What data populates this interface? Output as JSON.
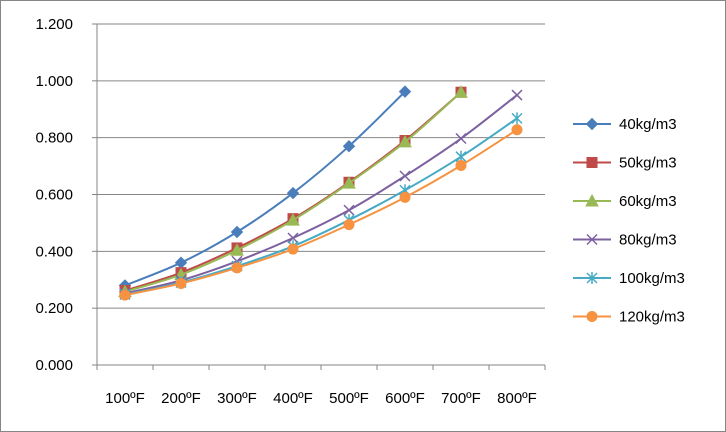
{
  "chart_data": {
    "type": "line",
    "title": "",
    "xlabel": "",
    "ylabel": "",
    "categories": [
      "100ºF",
      "200ºF",
      "300ºF",
      "400ºF",
      "500ºF",
      "600ºF",
      "700ºF",
      "800ºF"
    ],
    "ylim": [
      0,
      1.2
    ],
    "y_ticks": [
      "0.000",
      "0.200",
      "0.400",
      "0.600",
      "0.800",
      "1.000",
      "1.200"
    ],
    "grid": "horizontal",
    "legend_position": "right",
    "series": [
      {
        "name": "40kg/m3",
        "color": "#4A7EBB",
        "marker": "diamond",
        "values": [
          0.28,
          0.36,
          0.468,
          0.605,
          0.77,
          0.962,
          null,
          null
        ]
      },
      {
        "name": "50kg/m3",
        "color": "#BE4B48",
        "marker": "square",
        "values": [
          0.262,
          0.325,
          0.412,
          0.515,
          0.643,
          0.79,
          0.96,
          null
        ]
      },
      {
        "name": "60kg/m3",
        "color": "#98B954",
        "marker": "triangle",
        "values": [
          0.258,
          0.318,
          0.404,
          0.51,
          0.64,
          0.785,
          0.96,
          null
        ]
      },
      {
        "name": "80kg/m3",
        "color": "#7D60A0",
        "marker": "x",
        "values": [
          0.252,
          0.298,
          0.365,
          0.447,
          0.545,
          0.665,
          0.797,
          0.95
        ]
      },
      {
        "name": "100kg/m3",
        "color": "#46AAC5",
        "marker": "star",
        "values": [
          0.248,
          0.29,
          0.348,
          0.418,
          0.51,
          0.615,
          0.733,
          0.868
        ]
      },
      {
        "name": "120kg/m3",
        "color": "#F69240",
        "marker": "circle",
        "values": [
          0.246,
          0.287,
          0.342,
          0.408,
          0.494,
          0.59,
          0.702,
          0.828
        ]
      }
    ]
  }
}
